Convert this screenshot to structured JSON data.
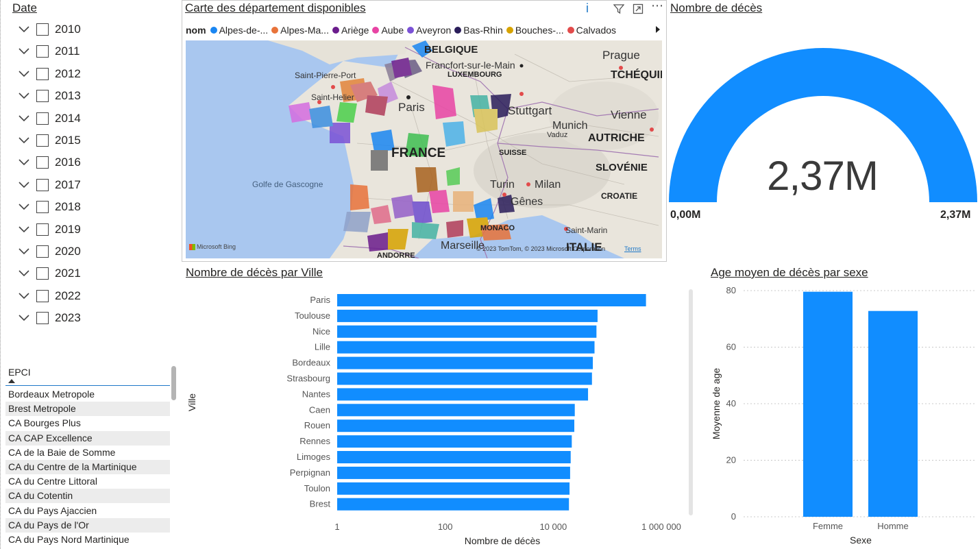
{
  "date_slicer": {
    "title": "Date",
    "years": [
      "2010",
      "2011",
      "2012",
      "2013",
      "2014",
      "2015",
      "2016",
      "2017",
      "2018",
      "2019",
      "2020",
      "2021",
      "2022",
      "2023"
    ]
  },
  "epci_slicer": {
    "header": "EPCI",
    "items": [
      "Bordeaux Metropole",
      "Brest Metropole",
      "CA Bourges Plus",
      "CA CAP Excellence",
      "CA de la Baie de Somme",
      "CA du Centre de la Martinique",
      "CA du Centre Littoral",
      "CA du Cotentin",
      "CA du Pays Ajaccien",
      "CA du Pays de l'Or",
      "CA du Pays Nord Martinique"
    ]
  },
  "map_visual": {
    "title": "Carte des département disponibles",
    "legend_title": "nom",
    "legend": [
      {
        "label": "Alpes-de-...",
        "color": "#1a86f2"
      },
      {
        "label": "Alpes-Ma...",
        "color": "#e8733a"
      },
      {
        "label": "Ariège",
        "color": "#6b1c8c"
      },
      {
        "label": "Aube",
        "color": "#e844a4"
      },
      {
        "label": "Aveyron",
        "color": "#7b52d6"
      },
      {
        "label": "Bas-Rhin",
        "color": "#2a1d5a"
      },
      {
        "label": "Bouches-...",
        "color": "#d7a300"
      },
      {
        "label": "Calvados",
        "color": "#e24b4b"
      }
    ],
    "labels": {
      "belgique": "BELGIQUE",
      "francfort": "Francfort-sur-le-Main",
      "luxembourg": "LUXEMBOURG",
      "prague": "Prague",
      "tcheque": "TCHÉQUIE",
      "stpierre": "Saint-Pierre-Port",
      "sthelier": "Saint-Helier",
      "paris": "Paris",
      "stuttgart": "Stuttgart",
      "vienne": "Vienne",
      "munich": "Munich",
      "vaduz": "Vaduz",
      "autriche": "AUTRICHE",
      "france": "FRANCE",
      "suisse": "SUISSE",
      "slovenie": "SLOVÉNIE",
      "golfe": "Golfe de Gascogne",
      "turin": "Turin",
      "milan": "Milan",
      "genes": "Gênes",
      "croatie": "CROATIE",
      "monaco": "MONACO",
      "stmarin": "Saint-Marin",
      "marseille": "Marseille",
      "italie": "ITALIE",
      "andorre": "ANDORRE"
    },
    "copyright": "© 2023 TomTom, © 2023 Microsoft Corporation",
    "terms": "Terms",
    "bing": "Microsoft Bing"
  },
  "gauge": {
    "title": "Nombre de décès",
    "value_label": "2,37M",
    "min_label": "0,00M",
    "max_label": "2,37M",
    "fill_fraction": 1.0,
    "color": "#118dff"
  },
  "bar_chart": {
    "title": "Nombre de décès par Ville",
    "chart_data": {
      "type": "bar",
      "orientation": "horizontal",
      "categories": [
        "Paris",
        "Toulouse",
        "Nice",
        "Lille",
        "Bordeaux",
        "Strasbourg",
        "Nantes",
        "Caen",
        "Rouen",
        "Rennes",
        "Limoges",
        "Perpignan",
        "Toulon",
        "Brest"
      ],
      "values": [
        520000,
        66000,
        63000,
        58000,
        54000,
        52000,
        44000,
        25000,
        24500,
        22000,
        21000,
        20500,
        20000,
        19500
      ],
      "xlabel": "Nombre de décès",
      "ylabel": "Ville",
      "x_scale": "log",
      "xlim": [
        1,
        1000000
      ],
      "x_ticks": [
        1,
        100,
        10000,
        1000000
      ],
      "x_tick_labels": [
        "1",
        "100",
        "10 000",
        "1 000 000"
      ],
      "color": "#118dff"
    }
  },
  "col_chart": {
    "title": "Age moyen de décès par sexe",
    "chart_data": {
      "type": "bar",
      "categories": [
        "Femme",
        "Homme"
      ],
      "values": [
        79.6,
        72.8
      ],
      "xlabel": "Sexe",
      "ylabel": "Moyenne de age",
      "ylim": [
        0,
        80
      ],
      "y_ticks": [
        0,
        20,
        40,
        60,
        80
      ],
      "color": "#118dff"
    }
  }
}
